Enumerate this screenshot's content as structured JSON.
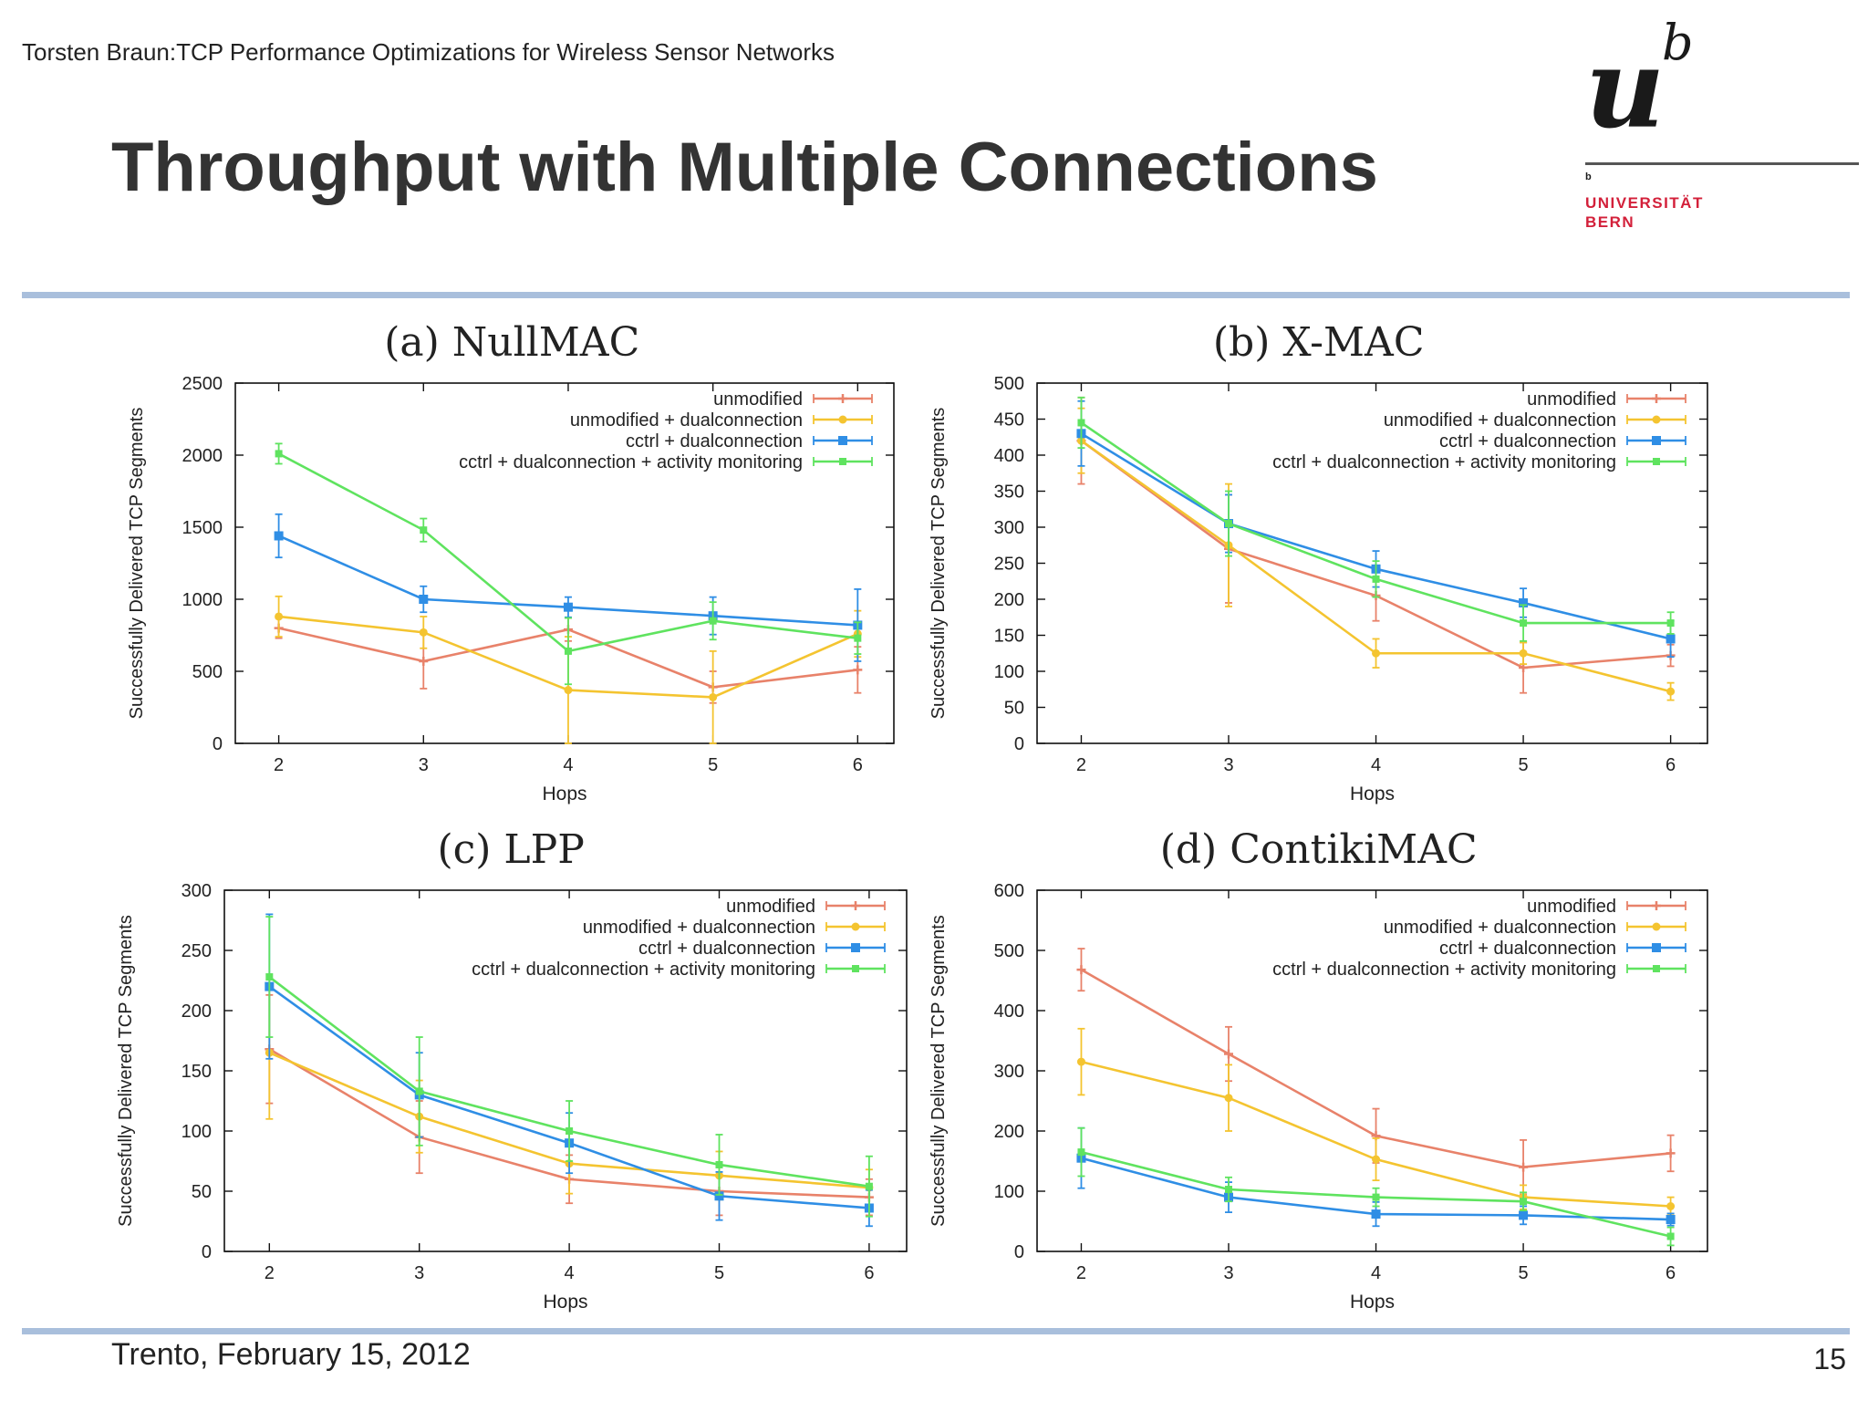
{
  "header": {
    "top_line": "Torsten Braun:TCP Performance Optimizations for Wireless Sensor Networks",
    "title": "Throughput with Multiple Connections"
  },
  "logo": {
    "letter_u": "u",
    "superscript_b": "b",
    "small_b": "b",
    "line1": "UNIVERSITÄT",
    "line2": "BERN",
    "accent_color": "#d3203a"
  },
  "footer": {
    "left": "Trento, February 15, 2012",
    "page_number": "15"
  },
  "colors": {
    "band": "#a9bfdc",
    "series": [
      "#e8826a",
      "#f4c430",
      "#2f8ee5",
      "#5fe35f"
    ]
  },
  "chart_data": [
    {
      "type": "line",
      "title": "(a) NullMAC",
      "xlabel": "Hops",
      "ylabel": "Successfully Delivered TCP Segments",
      "x": [
        2,
        3,
        4,
        5,
        6
      ],
      "xlim": [
        1.7,
        6.25
      ],
      "ylim": [
        0,
        2500
      ],
      "yticks": [
        0,
        500,
        1000,
        1500,
        2000,
        2500
      ],
      "grid": false,
      "legend": "top-right",
      "series": [
        {
          "name": "unmodified",
          "values": [
            800,
            570,
            790,
            390,
            510
          ],
          "errors": [
            70,
            190,
            80,
            110,
            160
          ]
        },
        {
          "name": "unmodified + dualconnection",
          "values": [
            880,
            770,
            370,
            320,
            760
          ],
          "errors": [
            140,
            110,
            370,
            320,
            160
          ]
        },
        {
          "name": "cctrl + dualconnection",
          "values": [
            1440,
            1000,
            945,
            885,
            820
          ],
          "errors": [
            150,
            90,
            70,
            130,
            250
          ]
        },
        {
          "name": "cctrl + dualconnection + activity monitoring",
          "values": [
            2010,
            1480,
            640,
            850,
            730
          ],
          "errors": [
            70,
            80,
            230,
            130,
            110
          ]
        }
      ]
    },
    {
      "type": "line",
      "title": "(b) X-MAC",
      "xlabel": "Hops",
      "ylabel": "Successfully Delivered TCP Segments",
      "x": [
        2,
        3,
        4,
        5,
        6
      ],
      "xlim": [
        1.7,
        6.25
      ],
      "ylim": [
        0,
        500
      ],
      "yticks": [
        0,
        50,
        100,
        150,
        200,
        250,
        300,
        350,
        400,
        450,
        500
      ],
      "grid": false,
      "legend": "top-right",
      "series": [
        {
          "name": "unmodified",
          "values": [
            420,
            270,
            205,
            105,
            122
          ],
          "errors": [
            60,
            75,
            35,
            35,
            15
          ]
        },
        {
          "name": "unmodified + dualconnection",
          "values": [
            420,
            275,
            125,
            125,
            72
          ],
          "errors": [
            45,
            85,
            20,
            15,
            12
          ]
        },
        {
          "name": "cctrl + dualconnection",
          "values": [
            430,
            305,
            242,
            195,
            145
          ],
          "errors": [
            45,
            40,
            25,
            20,
            25
          ]
        },
        {
          "name": "cctrl + dualconnection + activity monitoring",
          "values": [
            445,
            305,
            228,
            167,
            167
          ],
          "errors": [
            35,
            45,
            25,
            25,
            15
          ]
        }
      ]
    },
    {
      "type": "line",
      "title": "(c) LPP",
      "xlabel": "Hops",
      "ylabel": "Successfully Delivered TCP Segments",
      "x": [
        2,
        3,
        4,
        5,
        6
      ],
      "xlim": [
        1.7,
        6.25
      ],
      "ylim": [
        0,
        300
      ],
      "yticks": [
        0,
        50,
        100,
        150,
        200,
        250,
        300
      ],
      "grid": false,
      "legend": "top-right",
      "series": [
        {
          "name": "unmodified",
          "values": [
            168,
            95,
            60,
            50,
            45
          ],
          "errors": [
            45,
            30,
            20,
            20,
            15
          ]
        },
        {
          "name": "unmodified + dualconnection",
          "values": [
            165,
            112,
            73,
            63,
            53
          ],
          "errors": [
            55,
            30,
            25,
            20,
            15
          ]
        },
        {
          "name": "cctrl + dualconnection",
          "values": [
            220,
            130,
            90,
            46,
            36
          ],
          "errors": [
            60,
            35,
            25,
            20,
            15
          ]
        },
        {
          "name": "cctrl + dualconnection + activity monitoring",
          "values": [
            228,
            133,
            100,
            72,
            54
          ],
          "errors": [
            50,
            45,
            25,
            25,
            25
          ]
        }
      ]
    },
    {
      "type": "line",
      "title": "(d) ContikiMAC",
      "xlabel": "Hops",
      "ylabel": "Successfully Delivered TCP Segments",
      "x": [
        2,
        3,
        4,
        5,
        6
      ],
      "xlim": [
        1.7,
        6.25
      ],
      "ylim": [
        0,
        600
      ],
      "yticks": [
        0,
        100,
        200,
        300,
        400,
        500,
        600
      ],
      "grid": false,
      "legend": "top-right",
      "series": [
        {
          "name": "unmodified",
          "values": [
            468,
            328,
            192,
            140,
            163
          ],
          "errors": [
            35,
            45,
            45,
            45,
            30
          ]
        },
        {
          "name": "unmodified + dualconnection",
          "values": [
            315,
            255,
            153,
            90,
            75
          ],
          "errors": [
            55,
            55,
            35,
            20,
            15
          ]
        },
        {
          "name": "cctrl + dualconnection",
          "values": [
            155,
            90,
            62,
            60,
            53
          ],
          "errors": [
            50,
            25,
            20,
            15,
            10
          ]
        },
        {
          "name": "cctrl + dualconnection + activity monitoring",
          "values": [
            165,
            103,
            90,
            83,
            25
          ],
          "errors": [
            40,
            20,
            15,
            15,
            15
          ]
        }
      ]
    }
  ]
}
